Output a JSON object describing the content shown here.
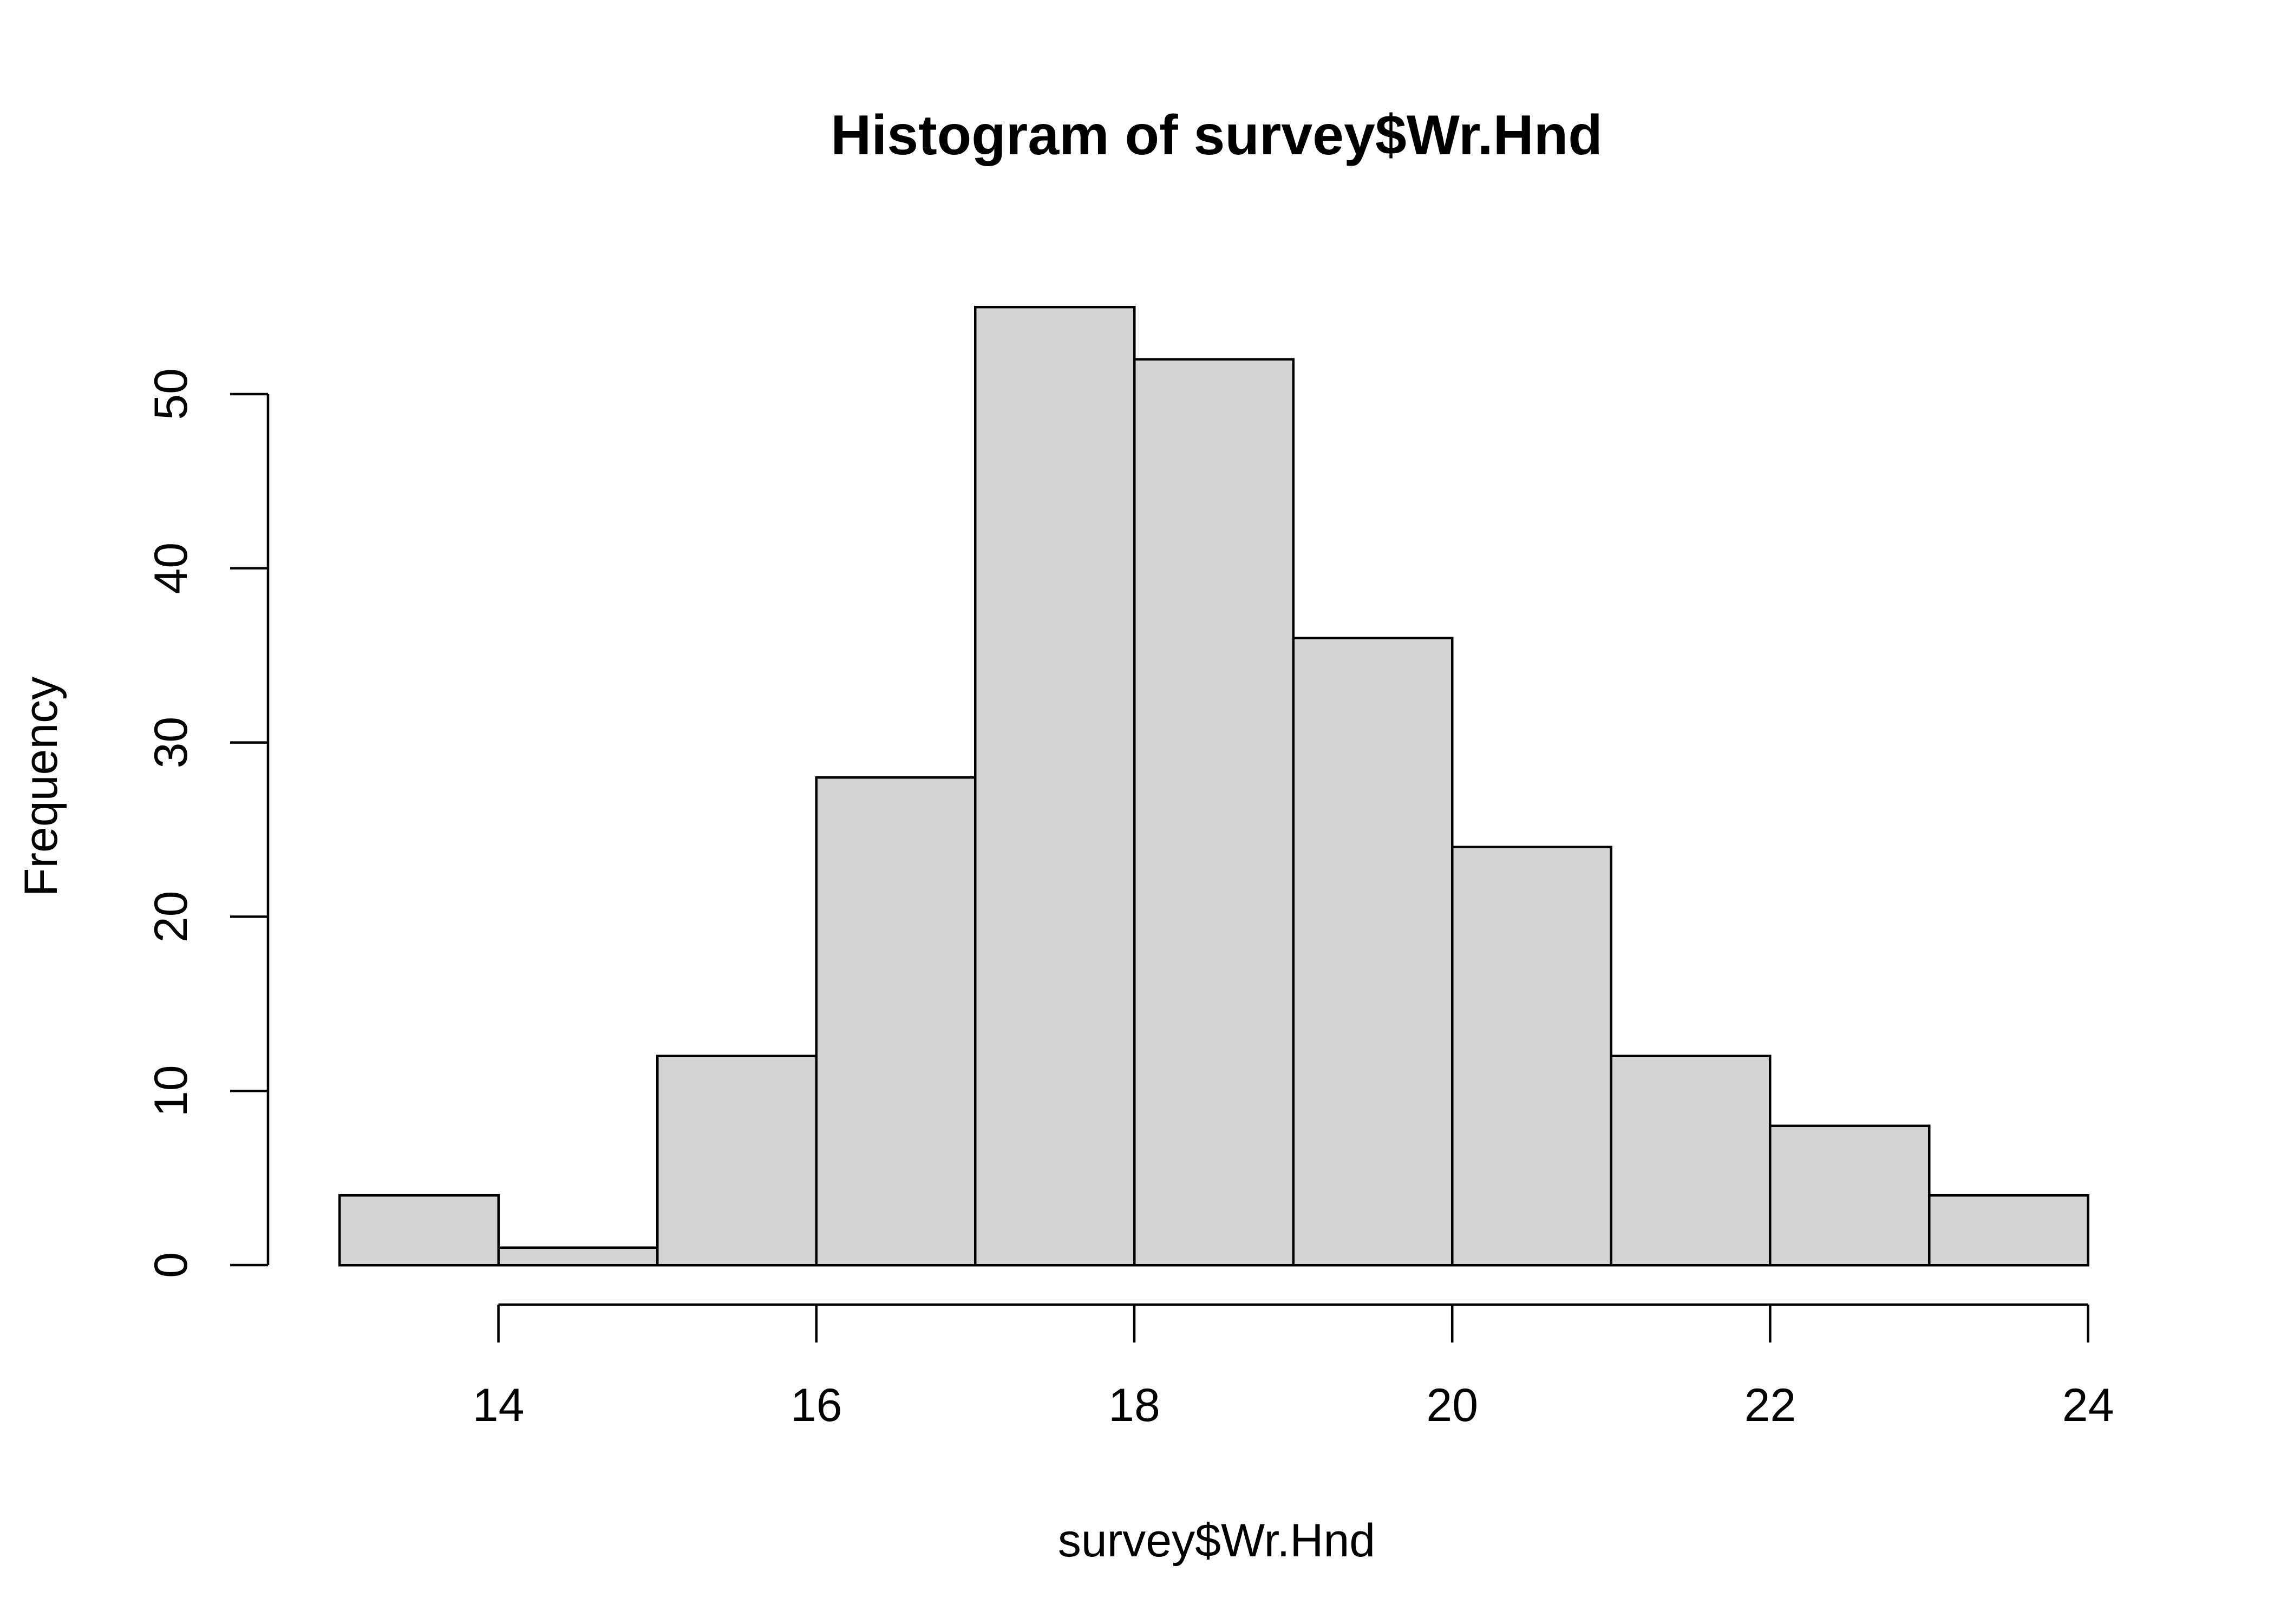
{
  "chart_data": {
    "type": "bar",
    "title": "Histogram of survey$Wr.Hnd",
    "xlabel": "survey$Wr.Hnd",
    "ylabel": "Frequency",
    "bin_edges": [
      13,
      14,
      15,
      16,
      17,
      18,
      19,
      20,
      21,
      22,
      23,
      24
    ],
    "categories": [
      "13-14",
      "14-15",
      "15-16",
      "16-17",
      "17-18",
      "18-19",
      "19-20",
      "20-21",
      "21-22",
      "22-23",
      "23-24"
    ],
    "values": [
      4,
      1,
      12,
      28,
      55,
      52,
      36,
      24,
      12,
      8,
      4
    ],
    "xlim": [
      13,
      24
    ],
    "ylim": [
      0,
      55
    ],
    "x_ticks": [
      14,
      16,
      18,
      20,
      22,
      24
    ],
    "y_ticks": [
      0,
      10,
      20,
      30,
      40,
      50
    ],
    "grid": false,
    "legend": "none",
    "bar_fill": "#d3d3d3",
    "bar_stroke": "#000000"
  }
}
